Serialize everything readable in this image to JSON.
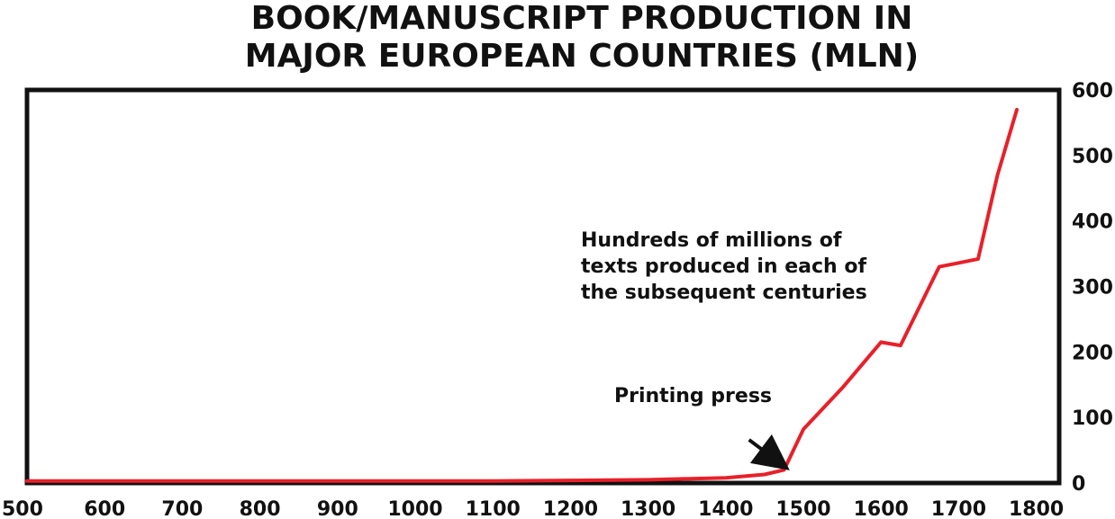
{
  "chart_data": {
    "type": "line",
    "title": [
      "BOOK/MANUSCRIPT PRODUCTION IN",
      "MAJOR EUROPEAN COUNTRIES (MLN)"
    ],
    "xlabel": "",
    "ylabel": "",
    "x_ticks": [
      "500",
      "600",
      "700",
      "800",
      "900",
      "1000",
      "1100",
      "1200",
      "1300",
      "1400",
      "1500",
      "1600",
      "1700",
      "1800"
    ],
    "y_ticks": [
      "0",
      "100",
      "200",
      "300",
      "400",
      "500",
      "600"
    ],
    "xlim": [
      500,
      1850
    ],
    "ylim": [
      0,
      600
    ],
    "y_axis_side": "right",
    "grid": false,
    "legend": "none",
    "series": [
      {
        "color": "#e8202a",
        "x": [
          500,
          600,
          700,
          800,
          900,
          1000,
          1100,
          1200,
          1300,
          1400,
          1450,
          1475,
          1500,
          1550,
          1600,
          1625,
          1650,
          1675,
          1700,
          1725,
          1750,
          1775
        ],
        "y": [
          3,
          3,
          3,
          3,
          3,
          3,
          3,
          4,
          5,
          8,
          13,
          20,
          82,
          145,
          215,
          210,
          270,
          330,
          336,
          342,
          470,
          570
        ]
      }
    ],
    "annotations": [
      {
        "text_lines": [
          "Printing press"
        ],
        "arrow_from": [
          1430,
          66
        ],
        "arrow_to": [
          1475,
          26
        ]
      },
      {
        "text_lines": [
          "Hundreds of millions of",
          "texts produced in each of",
          "the subsequent centuries"
        ]
      }
    ]
  }
}
